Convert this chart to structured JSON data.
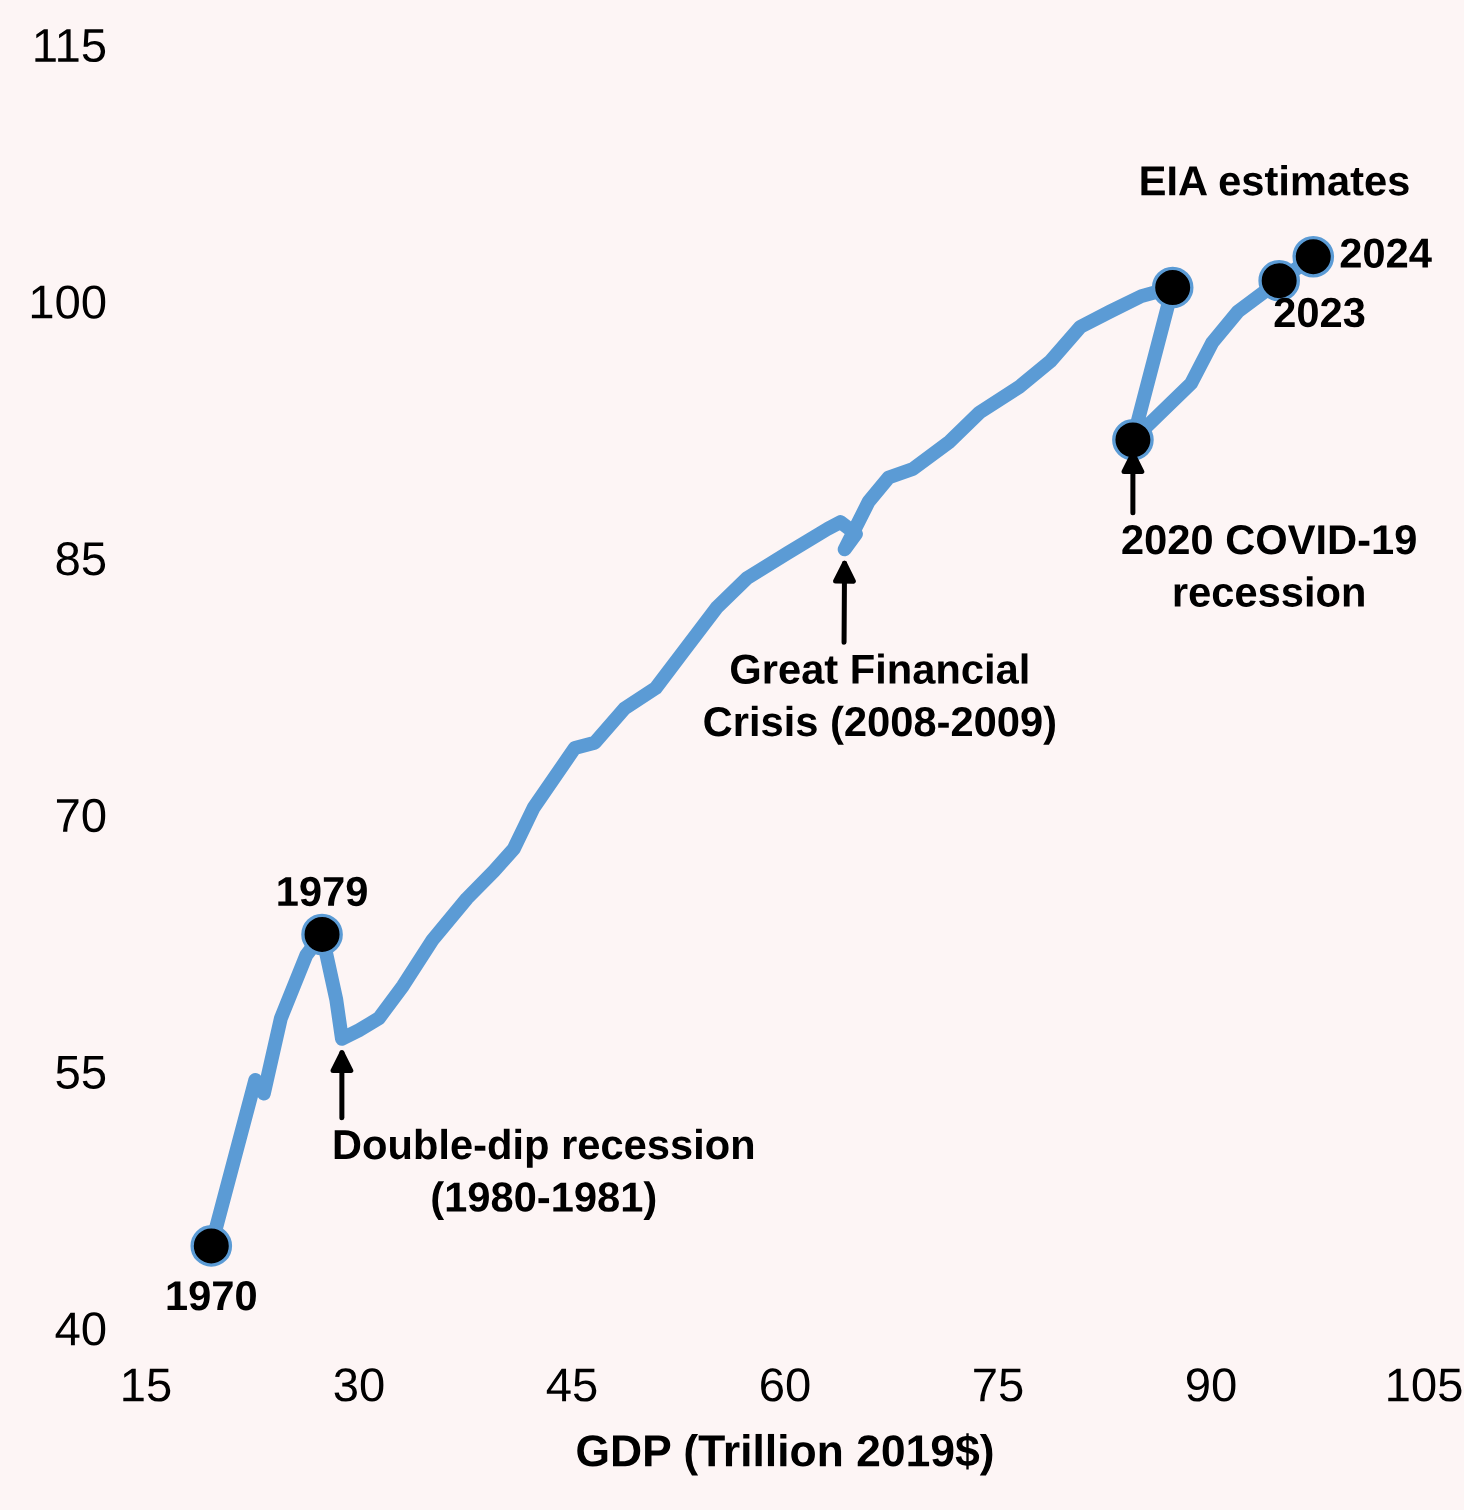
{
  "chart_data": {
    "type": "line",
    "xlabel": "GDP (Trillion 2019$)",
    "xlim": [
      15,
      105
    ],
    "xticks": [
      15,
      30,
      45,
      60,
      75,
      90,
      105
    ],
    "ylim": [
      40,
      115
    ],
    "yticks": [
      40,
      55,
      70,
      85,
      100,
      115
    ],
    "grid": false,
    "marker": "none",
    "line_style": "solid",
    "series": [
      {
        "color": "#5b9bd5",
        "x": [
          19.6,
          22.7,
          23.3,
          24.5,
          26.3,
          27.4,
          28.4,
          28.8,
          30.0,
          31.4,
          33.1,
          35.2,
          37.6,
          39.5,
          40.9,
          42.3,
          45.2,
          46.6,
          48.7,
          50.9,
          53.0,
          55.2,
          57.3,
          60.2,
          63.0,
          63.9,
          65.0,
          64.2,
          65.9,
          67.3,
          69.0,
          71.6,
          73.7,
          76.5,
          78.7,
          80.8,
          82.9,
          85.1,
          87.3,
          84.5,
          88.6,
          90.1,
          91.9,
          94.8,
          97.2
        ],
        "values": [
          44.8,
          54.5,
          53.7,
          58.1,
          61.8,
          63.0,
          59.2,
          56.9,
          57.4,
          58.1,
          60.0,
          62.7,
          65.1,
          66.7,
          68.0,
          70.4,
          73.9,
          74.2,
          76.2,
          77.4,
          79.7,
          82.1,
          83.8,
          85.3,
          86.7,
          87.1,
          86.4,
          85.5,
          88.3,
          89.7,
          90.2,
          91.8,
          93.5,
          95.0,
          96.5,
          98.5,
          99.4,
          100.3,
          100.8,
          91.9,
          95.2,
          97.6,
          99.4,
          101.2,
          102.6
        ]
      },
      {
        "type": "scatter",
        "color": "#000000",
        "marker": "circle",
        "x": [
          19.6,
          27.4,
          87.3,
          84.5,
          94.8,
          97.2
        ],
        "values": [
          44.8,
          63.0,
          100.8,
          91.9,
          101.2,
          102.6
        ]
      }
    ],
    "annotations": [
      {
        "text": "1970",
        "x": 19.6,
        "y": 44.8
      },
      {
        "text": "1979",
        "x": 27.4,
        "y": 63.0
      },
      {
        "text": "Double-dip recession\n(1980-1981)",
        "x": 28.8,
        "y": 56.9
      },
      {
        "text": "Great Financial\nCrisis (2008-2009)",
        "x": 64.2,
        "y": 85.5
      },
      {
        "text": "2020 COVID-19\nrecession",
        "x": 84.5,
        "y": 91.9
      },
      "EIA estimates",
      {
        "text": "2023",
        "x": 94.8,
        "y": 101.2
      },
      {
        "text": "2024",
        "x": 97.2,
        "y": 102.6
      }
    ]
  }
}
